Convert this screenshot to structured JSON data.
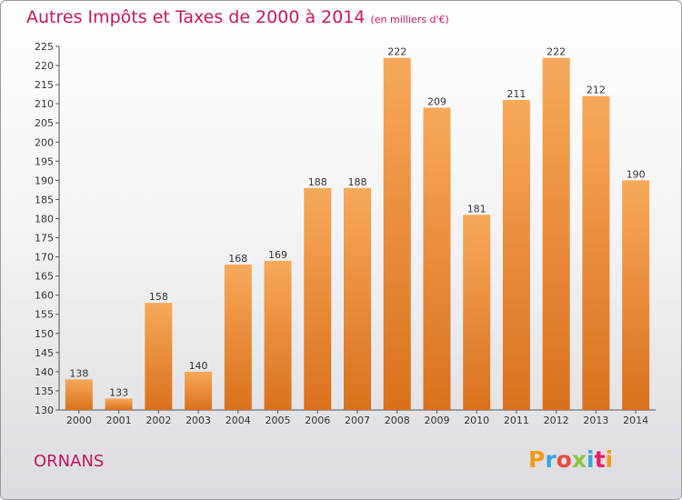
{
  "header": {
    "title": "Autres Impôts et Taxes de 2000 à 2014",
    "subtitle": "(en milliers d'€)"
  },
  "footer": {
    "commune": "ORNANS",
    "logo_text": "Proxiti",
    "logo_colors": [
      "#f39c12",
      "#3ca3dc",
      "#e74c3c",
      "#8cc63f",
      "#3ca3dc",
      "#e91e63",
      "#f39c12"
    ]
  },
  "colors": {
    "bar_top": "#f7a95a",
    "bar_bottom": "#d9711c",
    "title": "#c2185b"
  },
  "chart_data": {
    "type": "bar",
    "title": "Autres Impôts et Taxes de 2000 à 2014",
    "subtitle": "(en milliers d'€)",
    "xlabel": "",
    "ylabel": "",
    "categories": [
      "2000",
      "2001",
      "2002",
      "2003",
      "2004",
      "2005",
      "2006",
      "2007",
      "2008",
      "2009",
      "2010",
      "2011",
      "2012",
      "2013",
      "2014"
    ],
    "values": [
      138,
      133,
      158,
      140,
      168,
      169,
      188,
      188,
      222,
      209,
      181,
      211,
      222,
      212,
      190
    ],
    "ylim": [
      130,
      225
    ],
    "yticks": [
      130,
      135,
      140,
      145,
      150,
      155,
      160,
      165,
      170,
      175,
      180,
      185,
      190,
      195,
      200,
      205,
      210,
      215,
      220,
      225
    ],
    "grid": false,
    "legend": "none"
  }
}
